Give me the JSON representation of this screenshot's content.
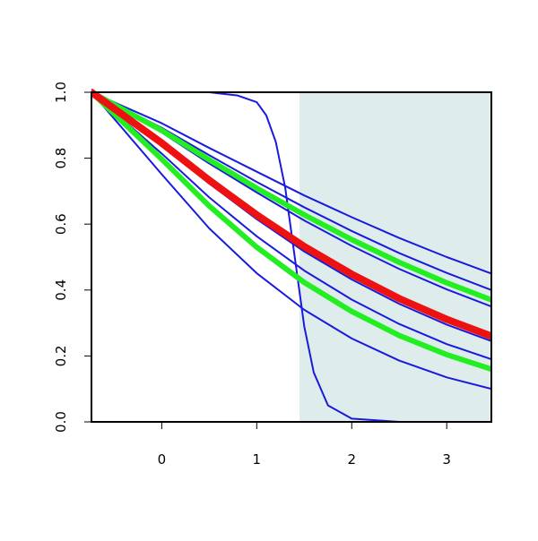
{
  "chart_data": {
    "type": "line",
    "x": [
      -0.74,
      0,
      0.5,
      1,
      1.5,
      2,
      2.5,
      3,
      3.47
    ],
    "xlim": [
      -0.74,
      3.47
    ],
    "xticks": [
      0,
      1,
      2,
      3
    ],
    "ylim": [
      0,
      1
    ],
    "yticks": [
      {
        "value": 0,
        "label": "0.0"
      },
      0.2,
      0.4,
      0.6,
      0.8,
      {
        "value": 1,
        "label": "1.0"
      }
    ],
    "shaded_region": {
      "x": [
        1.45,
        3.47
      ],
      "color": "#dfecec"
    },
    "series": [
      {
        "color": "#1a1adf",
        "width": 2,
        "values": [
          1,
          0.906,
          0.831,
          0.759,
          0.687,
          0.621,
          0.558,
          0.5,
          0.45
        ]
      },
      {
        "color": "#1a1adf",
        "width": 2,
        "values": [
          1,
          0.892,
          0.809,
          0.728,
          0.651,
          0.579,
          0.512,
          0.452,
          0.4
        ]
      },
      {
        "color": "#1a1adf",
        "width": 2,
        "values": [
          1,
          0.878,
          0.784,
          0.696,
          0.611,
          0.534,
          0.464,
          0.402,
          0.35
        ]
      },
      {
        "color": "#1a1adf",
        "width": 2,
        "values": [
          1,
          0.84,
          0.723,
          0.615,
          0.517,
          0.432,
          0.358,
          0.295,
          0.245
        ]
      },
      {
        "color": "#1a1adf",
        "width": 2,
        "values": [
          1,
          0.814,
          0.681,
          0.563,
          0.459,
          0.371,
          0.297,
          0.236,
          0.19
        ]
      },
      {
        "color": "#1a1adf",
        "width": 2,
        "values": [
          1,
          0.751,
          0.587,
          0.451,
          0.34,
          0.253,
          0.186,
          0.135,
          0.1
        ]
      },
      {
        "color": "#1a1adf",
        "width": 2,
        "x": [
          -0.74,
          0.5,
          0.8,
          1.0,
          1.1,
          1.2,
          1.3,
          1.4,
          1.5,
          1.6,
          1.75,
          2.0,
          2.5,
          3.47
        ],
        "values": [
          1,
          1,
          0.99,
          0.97,
          0.93,
          0.85,
          0.71,
          0.5,
          0.29,
          0.15,
          0.05,
          0.01,
          0,
          0
        ]
      },
      {
        "color": "#22ee22",
        "width": 6,
        "values": [
          1,
          0.884,
          0.795,
          0.709,
          0.628,
          0.553,
          0.484,
          0.422,
          0.37
        ]
      },
      {
        "color": "#22ee22",
        "width": 6,
        "values": [
          1,
          0.797,
          0.655,
          0.53,
          0.423,
          0.335,
          0.262,
          0.204,
          0.16
        ]
      },
      {
        "color": "#ee1111",
        "width": 8,
        "values": [
          1,
          0.846,
          0.733,
          0.628,
          0.532,
          0.448,
          0.374,
          0.311,
          0.26
        ]
      }
    ]
  }
}
